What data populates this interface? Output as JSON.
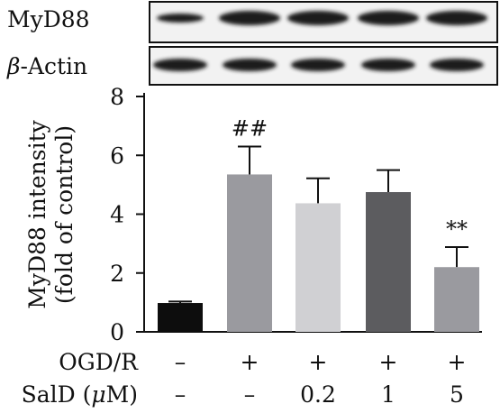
{
  "blots": [
    {
      "label": "MyD88",
      "label_italic_prefix": ""
    },
    {
      "label": "-Actin",
      "label_italic_prefix": "β"
    }
  ],
  "chart_data": {
    "type": "bar",
    "ylabel": [
      "MyD88 intensity",
      "(fold of control)"
    ],
    "ylim": [
      0,
      8
    ],
    "yticks": [
      "0",
      "2",
      "4",
      "6",
      "8"
    ],
    "bars": [
      {
        "value": 0.98,
        "error": 0.05,
        "color": "#0d0d0d",
        "annotation": ""
      },
      {
        "value": 5.35,
        "error": 0.95,
        "color": "#9a9a9f",
        "annotation": "##"
      },
      {
        "value": 4.37,
        "error": 0.85,
        "color": "#d0d0d3",
        "annotation": ""
      },
      {
        "value": 4.75,
        "error": 0.75,
        "color": "#5c5c5f",
        "annotation": ""
      },
      {
        "value": 2.2,
        "error": 0.68,
        "color": "#9a9a9f",
        "annotation": "**"
      }
    ],
    "conditions": [
      {
        "label": "OGD/R",
        "values": [
          "–",
          "+",
          "+",
          "+",
          "+"
        ]
      },
      {
        "label": "SalD (",
        "label_italic": "μ",
        "label_suffix": "M)",
        "values": [
          "–",
          "–",
          "0.2",
          "1",
          "5"
        ]
      }
    ]
  }
}
